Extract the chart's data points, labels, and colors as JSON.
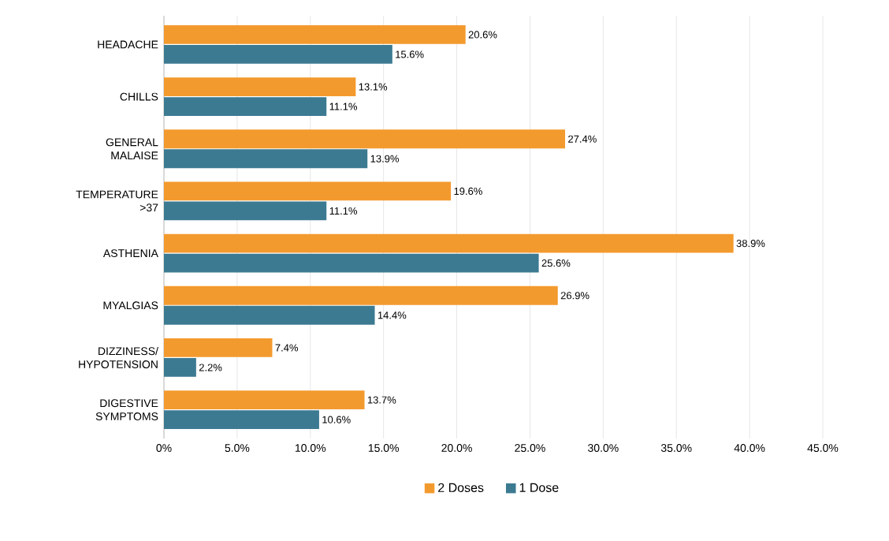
{
  "chart_data": {
    "type": "bar",
    "orientation": "horizontal",
    "categories": [
      "HEADACHE",
      "CHILLS",
      "GENERAL MALAISE",
      "TEMPERATURE >37",
      "ASTHENIA",
      "MYALGIAS",
      "DIZZINESS/ HYPOTENSION",
      "DIGESTIVE SYMPTOMS"
    ],
    "series": [
      {
        "name": "2 Doses",
        "color": "#f39a2e",
        "values": [
          20.6,
          13.1,
          27.4,
          19.6,
          38.9,
          26.9,
          7.4,
          13.7
        ],
        "value_labels": [
          "20.6%",
          "13.1%",
          "27.4%",
          "19.6%",
          "38.9%",
          "26.9%",
          "7.4%",
          "13.7%"
        ]
      },
      {
        "name": "1 Dose",
        "color": "#3c7a92",
        "values": [
          15.6,
          11.1,
          13.9,
          11.1,
          25.6,
          14.4,
          2.2,
          10.6
        ],
        "value_labels": [
          "15.6%",
          "11.1%",
          "13.9%",
          "11.1%",
          "25.6%",
          "14.4%",
          "2.2%",
          "10.6%"
        ]
      }
    ],
    "xlim": [
      0,
      45
    ],
    "xticks": [
      {
        "value": 0,
        "label": "0%"
      },
      {
        "value": 5,
        "label": "5.0%"
      },
      {
        "value": 10,
        "label": "10.0%"
      },
      {
        "value": 15,
        "label": "15.0%"
      },
      {
        "value": 20,
        "label": "20.0%"
      },
      {
        "value": 25,
        "label": "25.0%"
      },
      {
        "value": 30,
        "label": "30.0%"
      },
      {
        "value": 35,
        "label": "35.0%"
      },
      {
        "value": 40,
        "label": "40.0%"
      },
      {
        "value": 45,
        "label": "45.0%"
      }
    ],
    "grid": "x",
    "legend": "bottom"
  }
}
